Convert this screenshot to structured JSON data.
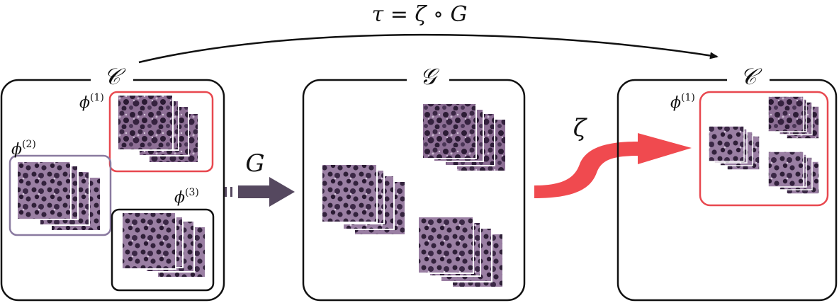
{
  "formula": "τ = ζ ∘ G",
  "panels": [
    {
      "label": "𝒞",
      "groups": [
        {
          "label": "ϕ",
          "sup": "(1)",
          "color": "#e8484f"
        },
        {
          "label": "ϕ",
          "sup": "(2)",
          "color": "#8a7aa0"
        },
        {
          "label": "ϕ",
          "sup": "(3)",
          "color": "#111111"
        }
      ]
    },
    {
      "label": "𝒢"
    },
    {
      "label": "𝒞",
      "groups": [
        {
          "label": "ϕ",
          "sup": "(1)",
          "color": "#e8484f"
        }
      ]
    }
  ],
  "arrow_G_label": "G",
  "arrow_zeta_label": "ζ",
  "colors": {
    "red_accent": "#f04a4f",
    "arrow_dark": "#55485f",
    "tile_base": "#6a4c72",
    "frame": "#111111"
  }
}
